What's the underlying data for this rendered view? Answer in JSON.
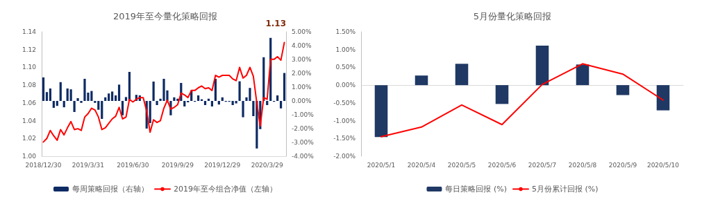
{
  "chart_data": [
    {
      "type": "bar",
      "title": "2019年至今量化策略回报",
      "categories": [
        "2018/12/30",
        null,
        null,
        null,
        null,
        null,
        null,
        null,
        null,
        null,
        null,
        null,
        null,
        "2019/3/31",
        null,
        null,
        null,
        null,
        null,
        null,
        null,
        null,
        null,
        null,
        null,
        null,
        "2019/6/30",
        null,
        null,
        null,
        null,
        null,
        null,
        null,
        null,
        null,
        null,
        null,
        null,
        "2019/9/29",
        null,
        null,
        null,
        null,
        null,
        null,
        null,
        null,
        null,
        null,
        null,
        null,
        "2019/12/29",
        null,
        null,
        null,
        null,
        null,
        null,
        null,
        null,
        null,
        null,
        null,
        null,
        "2020/3/29",
        null,
        null,
        null,
        null,
        null
      ],
      "series": [
        {
          "type": "bar",
          "name": "每周策略回报（右轴）",
          "color": "#0e2b63",
          "axis": "y2",
          "values": [
            1.7,
            0.64,
            0.9,
            -0.5,
            -0.36,
            1.36,
            -0.46,
            0.9,
            0.84,
            -0.8,
            0.2,
            -0.14,
            1.6,
            0.6,
            0.72,
            -0.14,
            -0.64,
            -1.3,
            0.26,
            0.54,
            0.68,
            0.4,
            1.18,
            -1.04,
            0.28,
            2.1,
            null,
            0.44,
            0.4,
            null,
            -2.0,
            -1.6,
            1.4,
            -0.3,
            0.16,
            1.6,
            0.76,
            -1.04,
            0.26,
            0.16,
            1.3,
            -0.4,
            -0.1,
            0.76,
            -0.06,
            0.4,
            0.12,
            -0.3,
            0.16,
            -0.4,
            1.6,
            -0.26,
            0.26,
            -0.06,
            -0.06,
            -0.3,
            -0.18,
            1.42,
            -1.18,
            0.26,
            0.94,
            -1.1,
            -3.44,
            -2.04,
            3.16,
            -0.3,
            4.56,
            -0.06,
            0.4,
            -0.54,
            2.02
          ]
        },
        {
          "type": "line",
          "name": "2019年至今组合净值（左轴）",
          "color": "#ff0000",
          "axis": "y",
          "values": [
            1.016,
            1.02,
            1.029,
            1.023,
            1.018,
            1.03,
            1.024,
            1.032,
            1.039,
            1.03,
            1.031,
            1.029,
            1.044,
            1.048,
            1.054,
            1.052,
            1.044,
            1.03,
            1.032,
            1.037,
            1.042,
            1.045,
            1.055,
            1.042,
            1.044,
            1.064,
            1.061,
            1.064,
            1.066,
            1.066,
            1.051,
            1.027,
            1.041,
            1.038,
            1.04,
            1.054,
            1.063,
            1.053,
            1.055,
            1.058,
            1.071,
            1.069,
            1.066,
            1.074,
            1.074,
            1.077,
            1.079,
            1.076,
            1.077,
            1.074,
            1.091,
            1.089,
            1.091,
            1.091,
            1.091,
            1.087,
            1.085,
            1.1,
            1.088,
            1.091,
            1.1,
            1.09,
            1.06,
            1.034,
            1.066,
            1.064,
            1.109,
            1.109,
            1.112,
            1.108,
            1.128
          ]
        }
      ],
      "ylim": [
        1.0,
        1.14
      ],
      "yticks": [
        {
          "value": 1.0,
          "label": "1.00"
        },
        {
          "value": 1.02,
          "label": "1.02"
        },
        {
          "value": 1.04,
          "label": "1.04"
        },
        {
          "value": 1.06,
          "label": "1.06"
        },
        {
          "value": 1.08,
          "label": "1.08"
        },
        {
          "value": 1.1,
          "label": "1.10"
        },
        {
          "value": 1.12,
          "label": "1.12"
        },
        {
          "value": 1.14,
          "label": "1.14"
        }
      ],
      "y2lim": [
        -4,
        5
      ],
      "y2ticks": [
        {
          "value": -4,
          "label": "-4.00%"
        },
        {
          "value": -3,
          "label": "-3.00%"
        },
        {
          "value": -2,
          "label": "-2.00%"
        },
        {
          "value": -1,
          "label": "-1.00%"
        },
        {
          "value": 0,
          "label": "0.00%"
        },
        {
          "value": 1,
          "label": "1.00%"
        },
        {
          "value": 2,
          "label": "2.00%"
        },
        {
          "value": 3,
          "label": "3.00%"
        },
        {
          "value": 4,
          "label": "4.00%"
        },
        {
          "value": 5,
          "label": "5.00%"
        }
      ],
      "annotations": [
        "1.13"
      ],
      "legend": "bottom",
      "marker": "none"
    },
    {
      "type": "bar",
      "title": "5月份量化策略回报",
      "categories": [
        "2020/5/1",
        "2020/5/4",
        "2020/5/5",
        "2020/5/6",
        "2020/5/7",
        "2020/5/8",
        "2020/5/9",
        "2020/5/10"
      ],
      "series": [
        {
          "type": "bar",
          "name": "每日策略回报 (%)",
          "color": "#1f3864",
          "values": [
            -1.46,
            0.27,
            0.6,
            -0.53,
            1.11,
            0.58,
            -0.28,
            -0.71
          ]
        },
        {
          "type": "line",
          "name": "5月份累计回报 (%)",
          "color": "#ff0000",
          "values": [
            -1.45,
            -1.18,
            -0.56,
            -1.11,
            0.02,
            0.6,
            0.31,
            -0.42
          ]
        }
      ],
      "ylim": [
        -2,
        1.5
      ],
      "yticks": [
        {
          "value": -2,
          "label": "-2.00%"
        },
        {
          "value": -1.5,
          "label": "-1.50%"
        },
        {
          "value": -1,
          "label": "-1.00%"
        },
        {
          "value": -0.5,
          "label": "-0.50%"
        },
        {
          "value": 0,
          "label": "0.00%"
        },
        {
          "value": 0.5,
          "label": "0.50%"
        },
        {
          "value": 1,
          "label": "1.00%"
        },
        {
          "value": 1.5,
          "label": "1.50%"
        }
      ],
      "legend": "bottom",
      "marker": "none"
    }
  ]
}
